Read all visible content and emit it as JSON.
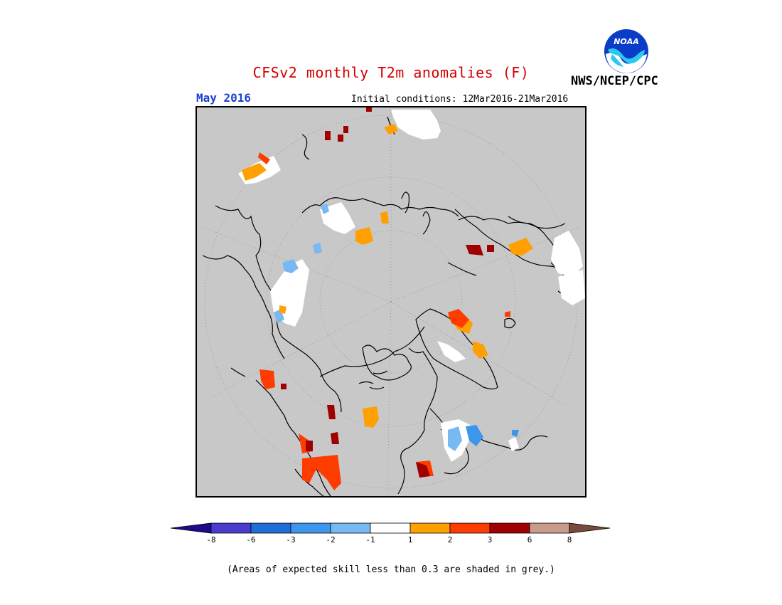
{
  "header": {
    "title": "CFSv2 monthly T2m anomalies (F)",
    "forecast_month": "May 2016",
    "initial_conditions": "Initial conditions: 12Mar2016-21Mar2016",
    "agency": "NWS/NCEP/CPC",
    "logo_text": "NOAA"
  },
  "map": {
    "projection": "north polar stereographic",
    "background_color": "#c8c8c8",
    "skill_note": "(Areas of expected skill less than 0.3 are shaded in grey.)"
  },
  "colorbar": {
    "labels": [
      "-8",
      "-6",
      "-3",
      "-2",
      "-1",
      "1",
      "2",
      "3",
      "6",
      "8"
    ],
    "colors": [
      "#1e0a8c",
      "#4a3ccc",
      "#1e6ed8",
      "#3c96ec",
      "#78b9f3",
      "#ffffff",
      "#ffa000",
      "#ff3c00",
      "#a00000",
      "#c89b8c",
      "#784b3c"
    ],
    "bins": [
      "<-8",
      "-8 to -6",
      "-6 to -3",
      "-3 to -2",
      "-2 to -1",
      "-1 to 1",
      "1 to 2",
      "2 to 3",
      "3 to 6",
      "6 to 8",
      ">8"
    ]
  }
}
